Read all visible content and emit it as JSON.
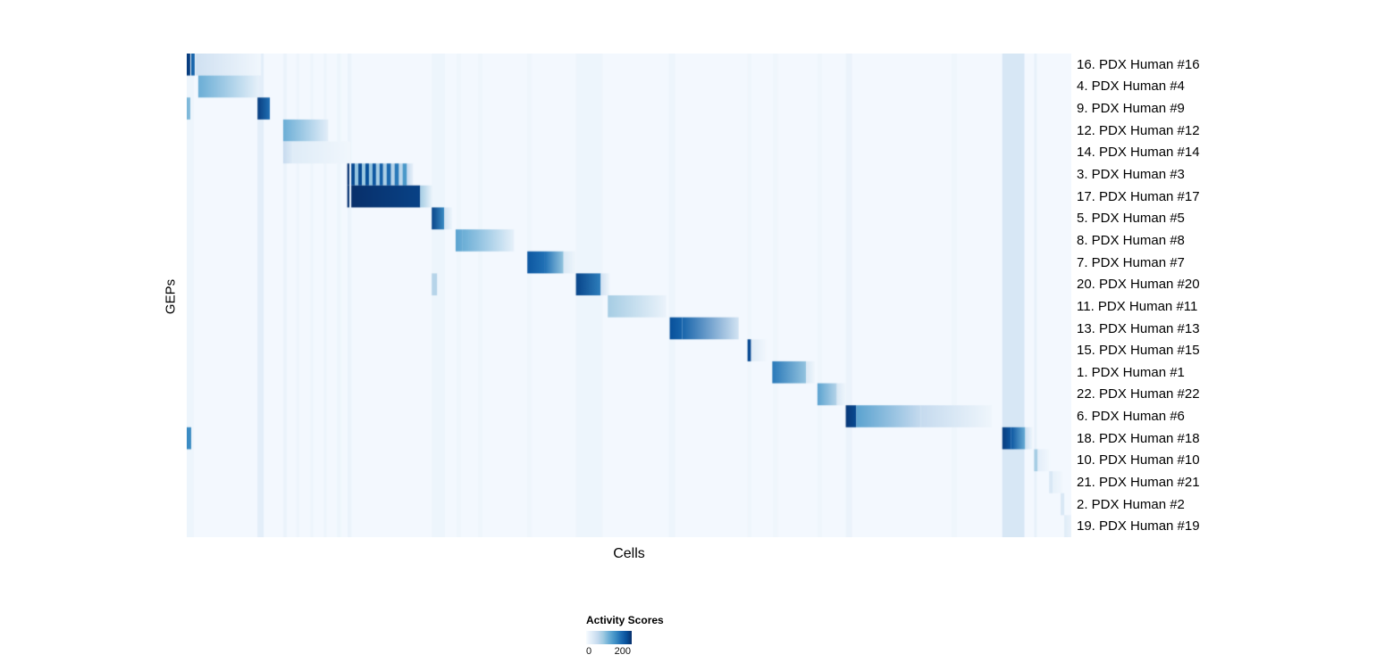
{
  "chart_data": {
    "type": "heatmap",
    "title": "",
    "xlabel": "Cells",
    "ylabel": "GEPs",
    "legend": {
      "title": "Activity Scores",
      "min_label": "0",
      "max_label": "200"
    },
    "colormap_stops": [
      "#f7fbff",
      "#deebf7",
      "#c6dbef",
      "#9ecae1",
      "#6baed6",
      "#4292c6",
      "#2171b5",
      "#08519c",
      "#08306b"
    ],
    "background_value": 0.02,
    "vertical_bands": [
      {
        "x0": 0.0,
        "x1": 0.008,
        "v": 0.05
      },
      {
        "x0": 0.08,
        "x1": 0.087,
        "v": 0.1
      },
      {
        "x0": 0.109,
        "x1": 0.113,
        "v": 0.06
      },
      {
        "x0": 0.124,
        "x1": 0.127,
        "v": 0.05
      },
      {
        "x0": 0.14,
        "x1": 0.143,
        "v": 0.05
      },
      {
        "x0": 0.155,
        "x1": 0.158,
        "v": 0.05
      },
      {
        "x0": 0.17,
        "x1": 0.174,
        "v": 0.05
      },
      {
        "x0": 0.182,
        "x1": 0.186,
        "v": 0.06
      },
      {
        "x0": 0.277,
        "x1": 0.292,
        "v": 0.05
      },
      {
        "x0": 0.305,
        "x1": 0.31,
        "v": 0.04
      },
      {
        "x0": 0.33,
        "x1": 0.334,
        "v": 0.04
      },
      {
        "x0": 0.385,
        "x1": 0.39,
        "v": 0.04
      },
      {
        "x0": 0.44,
        "x1": 0.47,
        "v": 0.05
      },
      {
        "x0": 0.545,
        "x1": 0.552,
        "v": 0.05
      },
      {
        "x0": 0.634,
        "x1": 0.638,
        "v": 0.04
      },
      {
        "x0": 0.663,
        "x1": 0.668,
        "v": 0.04
      },
      {
        "x0": 0.713,
        "x1": 0.718,
        "v": 0.04
      },
      {
        "x0": 0.745,
        "x1": 0.752,
        "v": 0.06
      },
      {
        "x0": 0.865,
        "x1": 0.87,
        "v": 0.04
      },
      {
        "x0": 0.922,
        "x1": 0.947,
        "v": 0.16
      },
      {
        "x0": 0.958,
        "x1": 0.961,
        "v": 0.08
      }
    ],
    "rows": [
      {
        "label": "16. PDX Human #16",
        "segments": [
          {
            "x0": 0.0,
            "x1": 0.004,
            "v0": 0.95
          },
          {
            "x0": 0.005,
            "x1": 0.009,
            "v0": 0.8
          },
          {
            "x0": 0.01,
            "x1": 0.084,
            "v0": 0.2,
            "v1": 0.03
          }
        ]
      },
      {
        "label": "4. PDX Human #4",
        "segments": [
          {
            "x0": 0.013,
            "x1": 0.082,
            "v0": 0.5,
            "v1": 0.08
          }
        ]
      },
      {
        "label": "9. PDX Human #9",
        "segments": [
          {
            "x0": 0.0,
            "x1": 0.004,
            "v0": 0.45
          },
          {
            "x0": 0.08,
            "x1": 0.094,
            "v0": 0.95,
            "v1": 0.75
          }
        ]
      },
      {
        "label": "12. PDX Human #12",
        "segments": [
          {
            "x0": 0.109,
            "x1": 0.16,
            "v0": 0.5,
            "v1": 0.1
          }
        ]
      },
      {
        "label": "14. PDX Human #14",
        "segments": [
          {
            "x0": 0.109,
            "x1": 0.12,
            "v0": 0.25,
            "v1": 0.12
          },
          {
            "x0": 0.12,
            "x1": 0.185,
            "v0": 0.12,
            "v1": 0.03
          }
        ]
      },
      {
        "label": "3. PDX Human #3",
        "segments": [
          {
            "x0": 0.1815,
            "x1": 0.1838,
            "v0": 0.98
          },
          {
            "x0": 0.186,
            "x1": 0.19,
            "v0": 0.9
          },
          {
            "x0": 0.19,
            "x1": 0.194,
            "v0": 0.4
          },
          {
            "x0": 0.194,
            "x1": 0.198,
            "v0": 0.9
          },
          {
            "x0": 0.198,
            "x1": 0.202,
            "v0": 0.38
          },
          {
            "x0": 0.202,
            "x1": 0.206,
            "v0": 0.88
          },
          {
            "x0": 0.206,
            "x1": 0.21,
            "v0": 0.4
          },
          {
            "x0": 0.21,
            "x1": 0.214,
            "v0": 0.85
          },
          {
            "x0": 0.214,
            "x1": 0.218,
            "v0": 0.35
          },
          {
            "x0": 0.218,
            "x1": 0.222,
            "v0": 0.82
          },
          {
            "x0": 0.222,
            "x1": 0.226,
            "v0": 0.33
          },
          {
            "x0": 0.226,
            "x1": 0.231,
            "v0": 0.78
          },
          {
            "x0": 0.231,
            "x1": 0.235,
            "v0": 0.3
          },
          {
            "x0": 0.235,
            "x1": 0.24,
            "v0": 0.72
          },
          {
            "x0": 0.24,
            "x1": 0.244,
            "v0": 0.28
          },
          {
            "x0": 0.244,
            "x1": 0.249,
            "v0": 0.6
          },
          {
            "x0": 0.249,
            "x1": 0.256,
            "v0": 0.25,
            "v1": 0.08
          }
        ]
      },
      {
        "label": "17. PDX Human #17",
        "segments": [
          {
            "x0": 0.1815,
            "x1": 0.1838,
            "v0": 0.98
          },
          {
            "x0": 0.186,
            "x1": 0.264,
            "v0": 1.0,
            "v1": 0.93
          },
          {
            "x0": 0.264,
            "x1": 0.278,
            "v0": 0.35,
            "v1": 0.05
          }
        ]
      },
      {
        "label": "5. PDX Human #5",
        "segments": [
          {
            "x0": 0.277,
            "x1": 0.291,
            "v0": 0.92,
            "v1": 0.65
          },
          {
            "x0": 0.291,
            "x1": 0.3,
            "v0": 0.2,
            "v1": 0.05
          }
        ]
      },
      {
        "label": "8. PDX Human #8",
        "segments": [
          {
            "x0": 0.304,
            "x1": 0.312,
            "v0": 0.55,
            "v1": 0.5
          },
          {
            "x0": 0.312,
            "x1": 0.37,
            "v0": 0.5,
            "v1": 0.08
          }
        ]
      },
      {
        "label": "7. PDX Human #7",
        "segments": [
          {
            "x0": 0.385,
            "x1": 0.405,
            "v0": 0.85,
            "v1": 0.75
          },
          {
            "x0": 0.405,
            "x1": 0.426,
            "v0": 0.75,
            "v1": 0.4
          },
          {
            "x0": 0.426,
            "x1": 0.44,
            "v0": 0.15,
            "v1": 0.04
          }
        ]
      },
      {
        "label": "20. PDX Human #20",
        "segments": [
          {
            "x0": 0.277,
            "x1": 0.283,
            "v0": 0.3
          },
          {
            "x0": 0.44,
            "x1": 0.468,
            "v0": 0.92,
            "v1": 0.7
          },
          {
            "x0": 0.468,
            "x1": 0.478,
            "v0": 0.2,
            "v1": 0.05
          }
        ]
      },
      {
        "label": "11. PDX Human #11",
        "segments": [
          {
            "x0": 0.476,
            "x1": 0.542,
            "v0": 0.35,
            "v1": 0.06
          }
        ]
      },
      {
        "label": "13. PDX Human #13",
        "segments": [
          {
            "x0": 0.546,
            "x1": 0.56,
            "v0": 0.88,
            "v1": 0.8
          },
          {
            "x0": 0.56,
            "x1": 0.624,
            "v0": 0.8,
            "v1": 0.18
          }
        ]
      },
      {
        "label": "15. PDX Human #15",
        "segments": [
          {
            "x0": 0.634,
            "x1": 0.638,
            "v0": 0.9
          },
          {
            "x0": 0.638,
            "x1": 0.655,
            "v0": 0.12,
            "v1": 0.03
          }
        ]
      },
      {
        "label": "1. PDX Human #1",
        "segments": [
          {
            "x0": 0.662,
            "x1": 0.7,
            "v0": 0.72,
            "v1": 0.4
          },
          {
            "x0": 0.7,
            "x1": 0.71,
            "v0": 0.15,
            "v1": 0.04
          }
        ]
      },
      {
        "label": "22. PDX Human #22",
        "segments": [
          {
            "x0": 0.713,
            "x1": 0.735,
            "v0": 0.55,
            "v1": 0.3
          },
          {
            "x0": 0.735,
            "x1": 0.745,
            "v0": 0.15,
            "v1": 0.04
          }
        ]
      },
      {
        "label": "6. PDX Human #6",
        "segments": [
          {
            "x0": 0.745,
            "x1": 0.757,
            "v0": 0.97,
            "v1": 0.9
          },
          {
            "x0": 0.757,
            "x1": 0.83,
            "v0": 0.55,
            "v1": 0.25
          },
          {
            "x0": 0.83,
            "x1": 0.91,
            "v0": 0.25,
            "v1": 0.04
          }
        ]
      },
      {
        "label": "18. PDX Human #18",
        "segments": [
          {
            "x0": 0.0,
            "x1": 0.005,
            "v0": 0.65
          },
          {
            "x0": 0.922,
            "x1": 0.932,
            "v0": 0.95,
            "v1": 0.85
          },
          {
            "x0": 0.932,
            "x1": 0.948,
            "v0": 0.85,
            "v1": 0.5
          },
          {
            "x0": 0.948,
            "x1": 0.956,
            "v0": 0.2,
            "v1": 0.05
          }
        ]
      },
      {
        "label": "10. PDX Human #10",
        "segments": [
          {
            "x0": 0.958,
            "x1": 0.962,
            "v0": 0.35
          },
          {
            "x0": 0.962,
            "x1": 0.975,
            "v0": 0.1,
            "v1": 0.03
          }
        ]
      },
      {
        "label": "21. PDX Human #21",
        "segments": [
          {
            "x0": 0.975,
            "x1": 0.979,
            "v0": 0.15
          },
          {
            "x0": 0.979,
            "x1": 0.99,
            "v0": 0.08,
            "v1": 0.03
          }
        ]
      },
      {
        "label": "2. PDX Human #2",
        "segments": [
          {
            "x0": 0.988,
            "x1": 0.992,
            "v0": 0.15
          }
        ]
      },
      {
        "label": "19. PDX Human #19",
        "segments": [
          {
            "x0": 0.992,
            "x1": 1.0,
            "v0": 0.12,
            "v1": 0.06
          }
        ]
      }
    ]
  }
}
